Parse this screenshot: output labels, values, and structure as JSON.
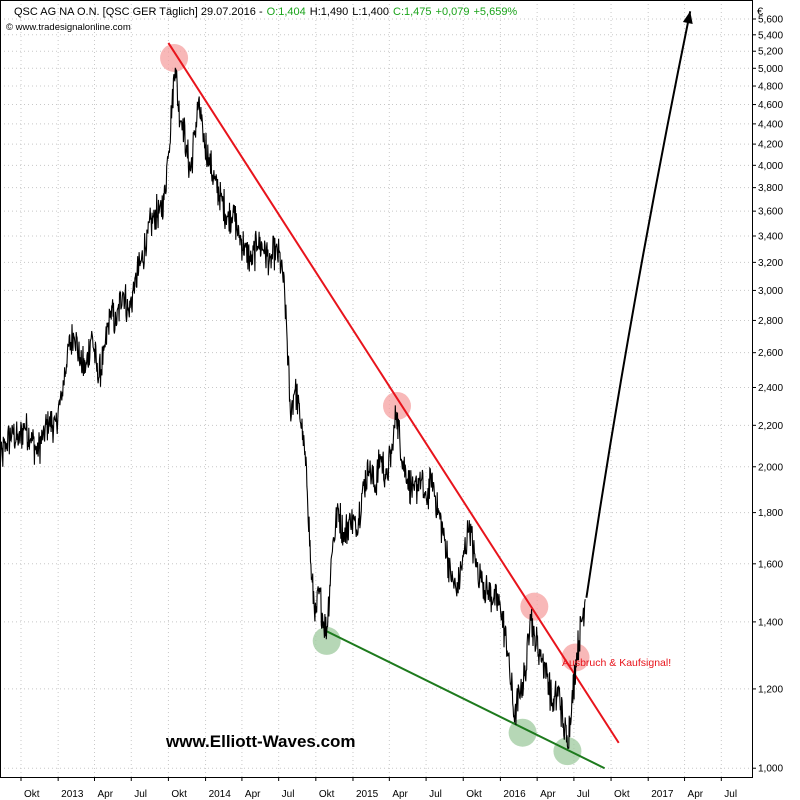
{
  "header": {
    "title": "QSC AG NA O.N. [QSC GER  Täglich] 29.07.2016 -",
    "open": "O:1,404",
    "high": "H:1,490",
    "low": "L:1,400",
    "close": "C:1,475",
    "change": "+0,079",
    "change_pct": "+5,659%",
    "source": "© www.tradesignalonline.com"
  },
  "currency_symbol": "€",
  "brand_text": "www.Elliott-Waves.com",
  "annotation": "Ausbruch & Kaufsignal!",
  "colors": {
    "price_line": "#000000",
    "resistance_line": "#e8141c",
    "support_line": "#1d7a1d",
    "pivot_high": "#f5a0a0",
    "pivot_low": "#9ec99e",
    "positive": "#1aa31a",
    "grid": "#c8c8c8"
  },
  "chart_data": {
    "type": "line",
    "title": "QSC AG NA O.N. [QSC GER  Täglich]",
    "y_scale": "log",
    "ylim": [
      0.98,
      5.85
    ],
    "xlim": [
      "2012-08-10",
      "2017-09-15"
    ],
    "yticks": [
      1.0,
      1.2,
      1.4,
      1.6,
      1.8,
      2.0,
      2.2,
      2.4,
      2.6,
      2.8,
      3.0,
      3.2,
      3.4,
      3.6,
      3.8,
      4.0,
      4.2,
      4.4,
      4.6,
      4.8,
      5.0,
      5.2,
      5.4,
      5.6
    ],
    "ytick_labels": [
      "1,000",
      "1,200",
      "1,400",
      "1,600",
      "1,800",
      "2,000",
      "2,200",
      "2,400",
      "2,600",
      "2,800",
      "3,000",
      "3,200",
      "3,400",
      "3,600",
      "3,800",
      "4,000",
      "4,200",
      "4,400",
      "4,600",
      "4,800",
      "5,000",
      "5,200",
      "5,400",
      "5,600"
    ],
    "xticks": [
      {
        "date": "2012-10-01",
        "label": "Okt"
      },
      {
        "date": "2013-01-01",
        "label": "2013"
      },
      {
        "date": "2013-04-01",
        "label": "Apr"
      },
      {
        "date": "2013-07-01",
        "label": "Jul"
      },
      {
        "date": "2013-10-01",
        "label": "Okt"
      },
      {
        "date": "2014-01-01",
        "label": "2014"
      },
      {
        "date": "2014-04-01",
        "label": "Apr"
      },
      {
        "date": "2014-07-01",
        "label": "Jul"
      },
      {
        "date": "2014-10-01",
        "label": "Okt"
      },
      {
        "date": "2015-01-01",
        "label": "2015"
      },
      {
        "date": "2015-04-01",
        "label": "Apr"
      },
      {
        "date": "2015-07-01",
        "label": "Jul"
      },
      {
        "date": "2015-10-01",
        "label": "Okt"
      },
      {
        "date": "2016-01-01",
        "label": "2016"
      },
      {
        "date": "2016-04-01",
        "label": "Apr"
      },
      {
        "date": "2016-07-01",
        "label": "Jul"
      },
      {
        "date": "2016-10-01",
        "label": "Okt"
      },
      {
        "date": "2017-01-01",
        "label": "2017"
      },
      {
        "date": "2017-04-01",
        "label": "Apr"
      },
      {
        "date": "2017-07-01",
        "label": "Jul"
      }
    ],
    "series": [
      {
        "kind": "price",
        "points": [
          [
            "2012-08-10",
            2.03
          ],
          [
            "2012-08-25",
            2.1
          ],
          [
            "2012-09-10",
            2.17
          ],
          [
            "2012-09-25",
            2.12
          ],
          [
            "2012-10-10",
            2.2
          ],
          [
            "2012-10-25",
            2.14
          ],
          [
            "2012-11-10",
            2.07
          ],
          [
            "2012-11-25",
            2.15
          ],
          [
            "2012-12-10",
            2.22
          ],
          [
            "2012-12-25",
            2.2
          ],
          [
            "2013-01-10",
            2.35
          ],
          [
            "2013-01-25",
            2.62
          ],
          [
            "2013-02-10",
            2.72
          ],
          [
            "2013-02-25",
            2.55
          ],
          [
            "2013-03-10",
            2.5
          ],
          [
            "2013-03-25",
            2.72
          ],
          [
            "2013-04-10",
            2.45
          ],
          [
            "2013-04-25",
            2.6
          ],
          [
            "2013-05-10",
            2.85
          ],
          [
            "2013-05-25",
            2.78
          ],
          [
            "2013-06-10",
            3.0
          ],
          [
            "2013-06-25",
            2.85
          ],
          [
            "2013-07-10",
            3.05
          ],
          [
            "2013-07-25",
            3.2
          ],
          [
            "2013-08-10",
            3.4
          ],
          [
            "2013-08-25",
            3.55
          ],
          [
            "2013-09-10",
            3.6
          ],
          [
            "2013-09-20",
            3.7
          ],
          [
            "2013-09-30",
            4.1
          ],
          [
            "2013-10-10",
            4.6
          ],
          [
            "2013-10-18",
            5.05
          ],
          [
            "2013-10-25",
            4.6
          ],
          [
            "2013-11-05",
            4.4
          ],
          [
            "2013-11-15",
            4.15
          ],
          [
            "2013-11-25",
            3.95
          ],
          [
            "2013-12-05",
            4.3
          ],
          [
            "2013-12-15",
            4.62
          ],
          [
            "2013-12-25",
            4.3
          ],
          [
            "2014-01-10",
            4.05
          ],
          [
            "2014-01-25",
            3.85
          ],
          [
            "2014-02-10",
            3.7
          ],
          [
            "2014-02-25",
            3.55
          ],
          [
            "2014-03-10",
            3.6
          ],
          [
            "2014-03-25",
            3.4
          ],
          [
            "2014-04-10",
            3.3
          ],
          [
            "2014-04-25",
            3.2
          ],
          [
            "2014-05-10",
            3.35
          ],
          [
            "2014-05-25",
            3.3
          ],
          [
            "2014-06-10",
            3.2
          ],
          [
            "2014-06-25",
            3.3
          ],
          [
            "2014-07-10",
            3.15
          ],
          [
            "2014-07-20",
            2.8
          ],
          [
            "2014-07-30",
            2.25
          ],
          [
            "2014-08-10",
            2.4
          ],
          [
            "2014-08-20",
            2.3
          ],
          [
            "2014-08-30",
            2.15
          ],
          [
            "2014-09-10",
            1.9
          ],
          [
            "2014-09-20",
            1.55
          ],
          [
            "2014-10-01",
            1.42
          ],
          [
            "2014-10-10",
            1.5
          ],
          [
            "2014-10-20",
            1.4
          ],
          [
            "2014-10-28",
            1.37
          ],
          [
            "2014-11-10",
            1.65
          ],
          [
            "2014-11-25",
            1.82
          ],
          [
            "2014-12-10",
            1.7
          ],
          [
            "2014-12-25",
            1.78
          ],
          [
            "2015-01-10",
            1.73
          ],
          [
            "2015-01-25",
            1.9
          ],
          [
            "2015-02-10",
            2.0
          ],
          [
            "2015-02-25",
            1.9
          ],
          [
            "2015-03-10",
            2.05
          ],
          [
            "2015-03-25",
            1.95
          ],
          [
            "2015-04-10",
            2.1
          ],
          [
            "2015-04-18",
            2.28
          ],
          [
            "2015-05-01",
            2.05
          ],
          [
            "2015-05-15",
            1.95
          ],
          [
            "2015-06-01",
            1.88
          ],
          [
            "2015-06-15",
            1.95
          ],
          [
            "2015-07-01",
            1.85
          ],
          [
            "2015-07-15",
            1.95
          ],
          [
            "2015-08-01",
            1.8
          ],
          [
            "2015-08-15",
            1.7
          ],
          [
            "2015-09-01",
            1.55
          ],
          [
            "2015-09-15",
            1.5
          ],
          [
            "2015-10-01",
            1.62
          ],
          [
            "2015-10-15",
            1.75
          ],
          [
            "2015-11-01",
            1.6
          ],
          [
            "2015-11-15",
            1.55
          ],
          [
            "2015-12-01",
            1.5
          ],
          [
            "2015-12-15",
            1.48
          ],
          [
            "2016-01-01",
            1.45
          ],
          [
            "2016-01-20",
            1.3
          ],
          [
            "2016-02-05",
            1.12
          ],
          [
            "2016-02-20",
            1.2
          ],
          [
            "2016-03-05",
            1.25
          ],
          [
            "2016-03-15",
            1.44
          ],
          [
            "2016-03-25",
            1.35
          ],
          [
            "2016-04-10",
            1.3
          ],
          [
            "2016-04-25",
            1.25
          ],
          [
            "2016-05-10",
            1.15
          ],
          [
            "2016-05-25",
            1.2
          ],
          [
            "2016-06-05",
            1.1
          ],
          [
            "2016-06-15",
            1.06
          ],
          [
            "2016-06-25",
            1.15
          ],
          [
            "2016-07-08",
            1.3
          ],
          [
            "2016-07-20",
            1.4
          ],
          [
            "2016-07-29",
            1.475
          ]
        ]
      },
      {
        "kind": "resistance",
        "points": [
          [
            "2013-10-01",
            5.3
          ],
          [
            "2016-10-20",
            1.06
          ]
        ]
      },
      {
        "kind": "support",
        "points": [
          [
            "2014-10-28",
            1.37
          ],
          [
            "2016-09-15",
            1.0
          ]
        ]
      },
      {
        "kind": "projection",
        "points": [
          [
            "2016-08-01",
            1.48
          ],
          [
            "2017-04-15",
            5.7
          ]
        ]
      }
    ],
    "pivots": [
      {
        "kind": "high",
        "date": "2013-10-15",
        "value": 5.12
      },
      {
        "kind": "high",
        "date": "2015-04-20",
        "value": 2.3
      },
      {
        "kind": "high",
        "date": "2016-03-25",
        "value": 1.45
      },
      {
        "kind": "high",
        "date": "2016-07-05",
        "value": 1.29
      },
      {
        "kind": "low",
        "date": "2014-10-28",
        "value": 1.34
      },
      {
        "kind": "low",
        "date": "2016-02-25",
        "value": 1.085
      },
      {
        "kind": "low",
        "date": "2016-06-15",
        "value": 1.04
      }
    ]
  }
}
